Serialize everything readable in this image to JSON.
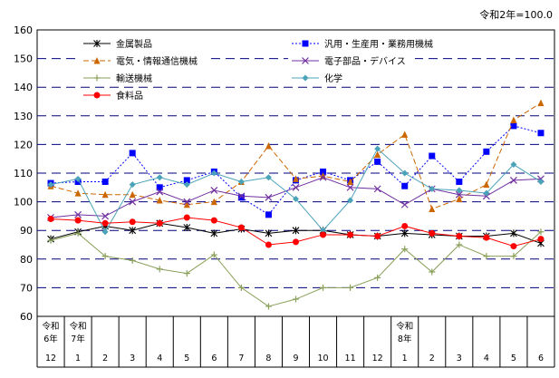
{
  "chart_data": {
    "type": "line",
    "note": "令和2年=100.0",
    "ylim": [
      60,
      160
    ],
    "y_ticks": [
      60,
      70,
      80,
      90,
      100,
      110,
      120,
      130,
      140,
      150,
      160
    ],
    "categories": [
      "12",
      "1",
      "2",
      "3",
      "4",
      "5",
      "6",
      "7",
      "8",
      "9",
      "10",
      "11",
      "12",
      "1",
      "2",
      "3",
      "4",
      "5",
      "6"
    ],
    "era_labels": [
      {
        "index": 0,
        "line1": "令和",
        "line2": "6年"
      },
      {
        "index": 1,
        "line1": "令和",
        "line2": "7年"
      },
      {
        "index": 13,
        "line1": "令和",
        "line2": "8年"
      }
    ],
    "series": [
      {
        "name": "金属製品",
        "color": "#000000",
        "dash": "solid",
        "marker": "star",
        "values": [
          87.0,
          89.5,
          91.5,
          90.0,
          92.5,
          91.0,
          89.0,
          90.5,
          89.0,
          90.0,
          90.0,
          88.5,
          88.0,
          89.0,
          88.5,
          88.0,
          88.0,
          89.0,
          85.5
        ]
      },
      {
        "name": "汎用・生産用・業務用機械",
        "color": "#0000ff",
        "dash": "dotted",
        "marker": "square",
        "values": [
          106.5,
          107.0,
          107.0,
          117.0,
          105.0,
          107.5,
          110.5,
          101.5,
          95.5,
          107.5,
          110.5,
          107.5,
          114.0,
          105.5,
          116.0,
          107.0,
          117.5,
          126.5,
          124.0
        ]
      },
      {
        "name": "電気・情報通信機械",
        "color": "#cc6600",
        "dash": "dashed",
        "marker": "triangle",
        "values": [
          105.5,
          103.0,
          102.5,
          102.5,
          100.5,
          99.0,
          100.0,
          107.0,
          119.5,
          108.0,
          109.0,
          107.0,
          116.5,
          123.5,
          97.5,
          101.0,
          106.0,
          128.5,
          134.5
        ]
      },
      {
        "name": "電子部品・デバイス",
        "color": "#7030a0",
        "dash": "solid",
        "marker": "x",
        "values": [
          94.5,
          95.5,
          95.0,
          100.0,
          103.5,
          100.0,
          104.0,
          102.0,
          101.5,
          105.0,
          108.5,
          105.0,
          104.5,
          99.0,
          104.5,
          102.5,
          102.0,
          107.5,
          108.0
        ]
      },
      {
        "name": "輸送機械",
        "color": "#8aa05a",
        "dash": "solid",
        "marker": "plus",
        "values": [
          86.5,
          89.0,
          81.0,
          79.5,
          76.5,
          75.0,
          81.5,
          70.0,
          63.5,
          66.0,
          70.0,
          70.0,
          73.5,
          83.5,
          75.5,
          85.0,
          81.0,
          81.0,
          89.5
        ]
      },
      {
        "name": "化学",
        "color": "#4aa3b8",
        "dash": "solid",
        "marker": "diamond",
        "values": [
          106.0,
          108.0,
          89.5,
          106.0,
          108.5,
          106.0,
          110.0,
          107.0,
          108.5,
          101.0,
          90.0,
          100.5,
          118.5,
          110.0,
          104.5,
          104.0,
          103.0,
          113.0,
          107.0
        ]
      },
      {
        "name": "食料品",
        "color": "#ff0000",
        "dash": "solid",
        "marker": "circle",
        "values": [
          94.0,
          93.5,
          92.5,
          93.0,
          92.5,
          94.5,
          93.5,
          91.0,
          85.0,
          86.0,
          88.5,
          88.5,
          88.0,
          91.5,
          89.0,
          88.0,
          87.5,
          84.5,
          87.0
        ]
      }
    ]
  }
}
